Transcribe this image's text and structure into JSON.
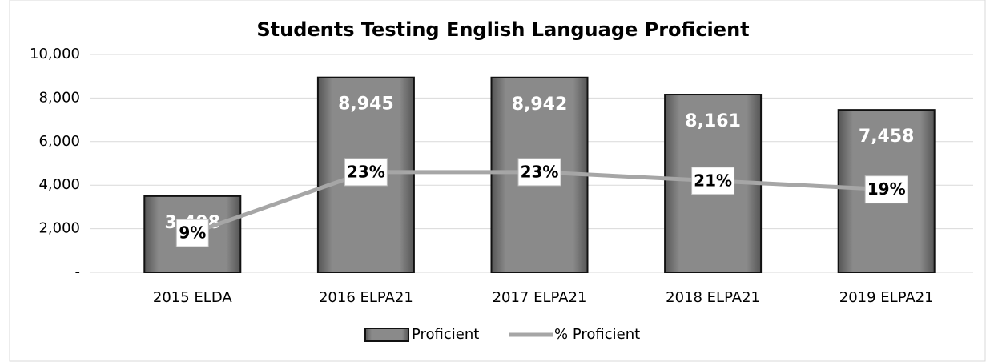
{
  "chart_data": {
    "type": "bar",
    "title": "Students Testing English Language Proficient",
    "categories": [
      "2015 ELDA",
      "2016 ELPA21",
      "2017 ELPA21",
      "2018 ELPA21",
      "2019 ELPA21"
    ],
    "series": [
      {
        "name": "Proficient",
        "type": "bar",
        "color": "#7a7a7a",
        "values": [
          3498,
          8945,
          8942,
          8161,
          7458
        ],
        "value_labels": [
          "3,498",
          "8,945",
          "8,942",
          "8,161",
          "7,458"
        ]
      },
      {
        "name": "% Proficient",
        "type": "line",
        "axis": "y2",
        "color": "#a6a6a6",
        "values": [
          9,
          23,
          23,
          21,
          19
        ],
        "value_labels": [
          "9%",
          "23%",
          "23%",
          "21%",
          "19%"
        ]
      }
    ],
    "ylim": [
      0,
      10000
    ],
    "yticks": [
      {
        "value": 0,
        "label": "-"
      },
      {
        "value": 2000,
        "label": "2,000"
      },
      {
        "value": 4000,
        "label": "4,000"
      },
      {
        "value": 6000,
        "label": "6,000"
      },
      {
        "value": 8000,
        "label": "8,000"
      },
      {
        "value": 10000,
        "label": "10,000"
      }
    ],
    "y2lim": [
      0,
      50
    ],
    "grid": true,
    "legend": "bottom"
  }
}
